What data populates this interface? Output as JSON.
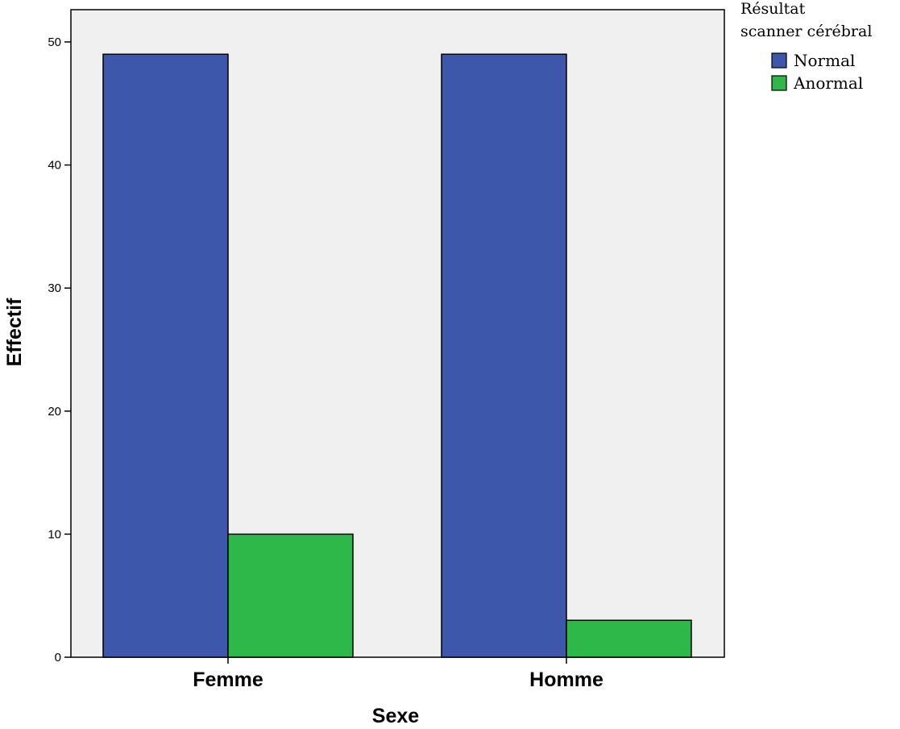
{
  "chart_data": {
    "type": "bar",
    "categories": [
      "Femme",
      "Homme"
    ],
    "series": [
      {
        "name": "Normal",
        "values": [
          49,
          49
        ],
        "color": "#3d57aa"
      },
      {
        "name": "Anormal",
        "values": [
          10,
          3
        ],
        "color": "#2fb84a"
      }
    ],
    "xlabel": "Sexe",
    "ylabel": "Effectif",
    "ylim": [
      0,
      50
    ],
    "yticks": [
      "0",
      "10",
      "20",
      "30",
      "40",
      "50"
    ],
    "legend": {
      "title_lines": [
        "Résultat",
        "scanner cérébral"
      ],
      "position": "top-right, outside plot"
    },
    "grid": false,
    "plot_background": "#f0f0f0"
  }
}
